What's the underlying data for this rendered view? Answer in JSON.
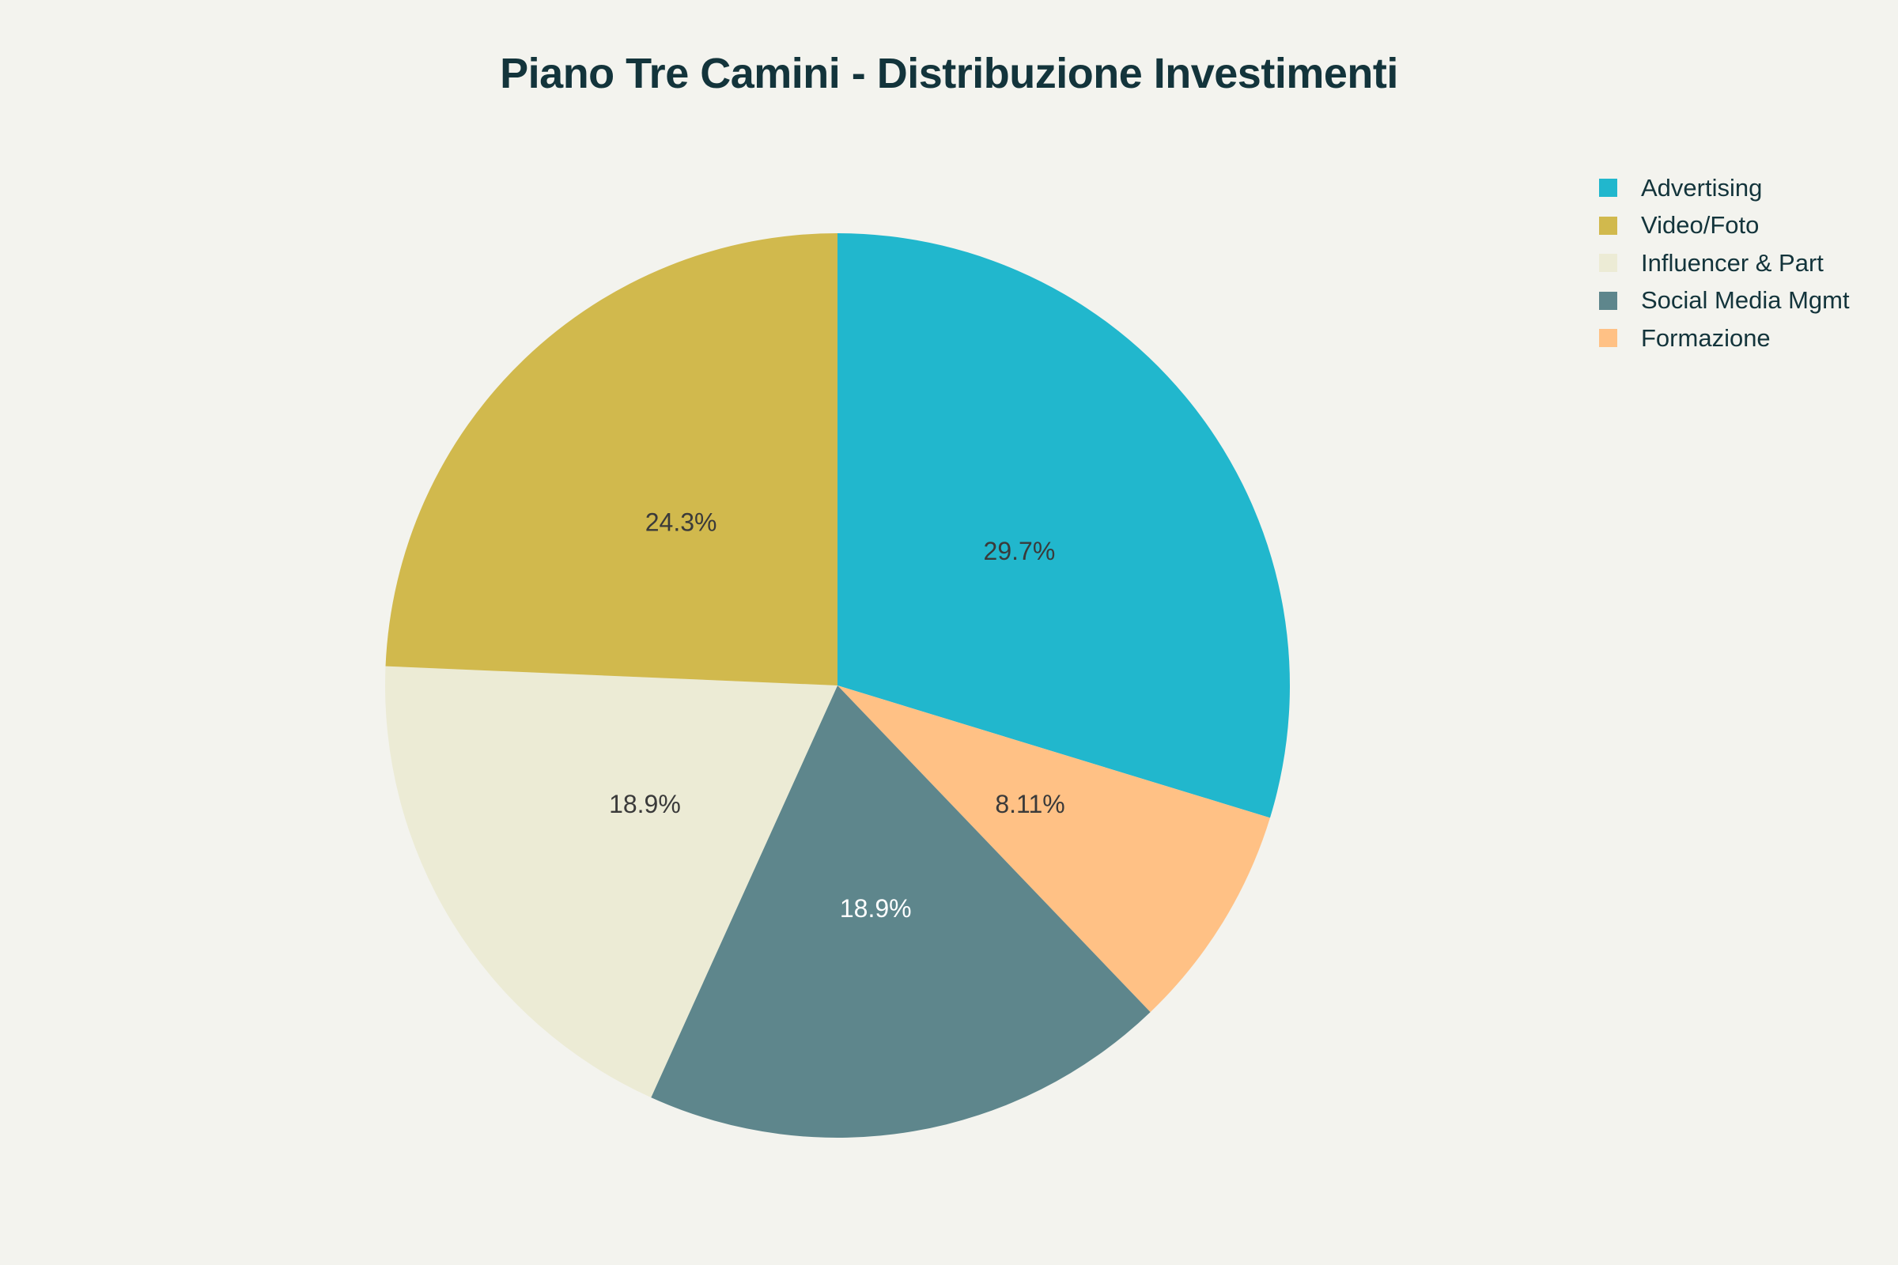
{
  "chart_data": {
    "type": "pie",
    "title": "Piano Tre Camini - Distribuzione Investimenti",
    "legend_position": "top-right",
    "direction": "clockwise",
    "start_angle_deg": 0,
    "slices": [
      {
        "label": "Advertising",
        "value": 29.7,
        "display": "29.7%",
        "color": "#21b7cd",
        "label_color": "#3a3a3a"
      },
      {
        "label": "Formazione",
        "value": 8.11,
        "display": "8.11%",
        "color": "#ffc185",
        "label_color": "#3a3a3a"
      },
      {
        "label": "Social Media Mgmt",
        "value": 18.9,
        "display": "18.9%",
        "color": "#5e868c",
        "label_color": "#ffffff"
      },
      {
        "label": "Influencer & Part",
        "value": 18.9,
        "display": "18.9%",
        "color": "#ecebd5",
        "label_color": "#3a3a3a"
      },
      {
        "label": "Video/Foto",
        "value": 24.3,
        "display": "24.3%",
        "color": "#d1b94d",
        "label_color": "#3a3a3a"
      }
    ],
    "legend": [
      {
        "label": "Advertising",
        "color": "#21b7cd"
      },
      {
        "label": "Video/Foto",
        "color": "#d1b94d"
      },
      {
        "label": "Influencer & Part",
        "color": "#ecebd5"
      },
      {
        "label": "Social Media Mgmt",
        "color": "#5e868c"
      },
      {
        "label": "Formazione",
        "color": "#ffc185"
      }
    ]
  }
}
